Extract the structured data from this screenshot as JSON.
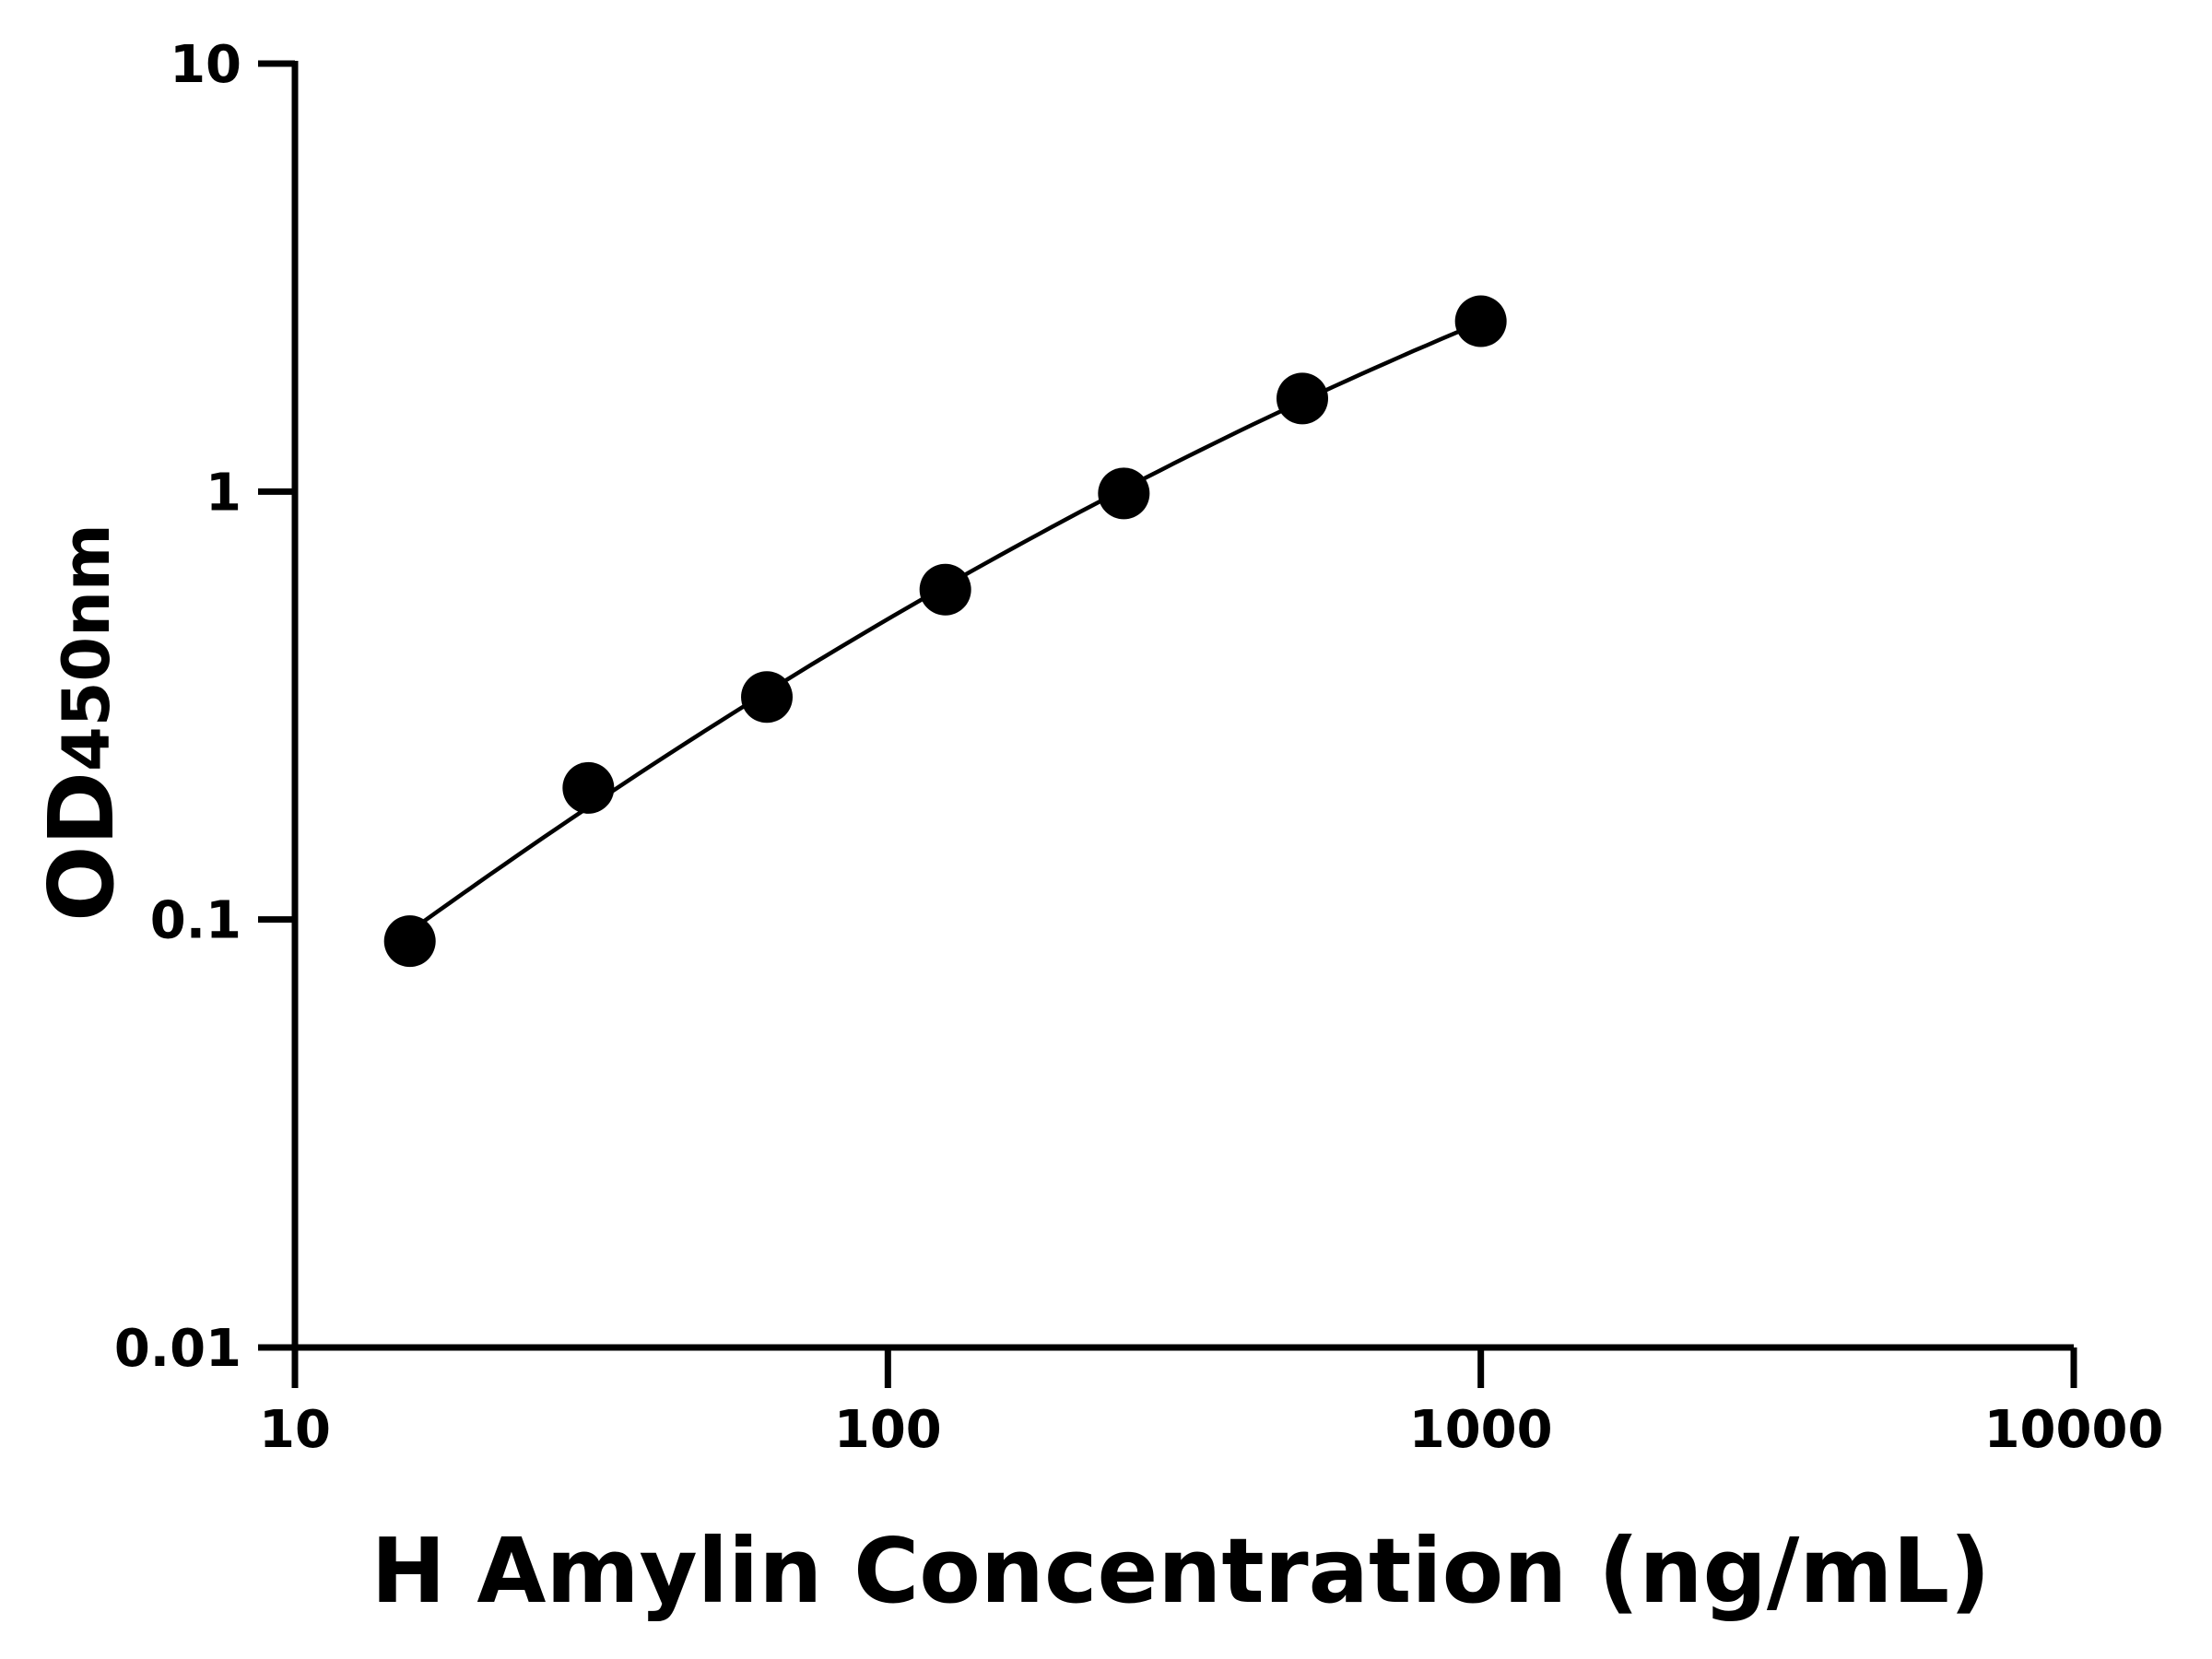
{
  "chart_data": {
    "type": "scatter",
    "title": "",
    "xlabel": "H Amylin Concentration (ng/mL)",
    "ylabel": "OD",
    "ylabel_subscript": "450nm",
    "x_scale": "log",
    "y_scale": "log",
    "xlim": [
      10,
      10000
    ],
    "ylim": [
      0.01,
      10
    ],
    "x_ticks": [
      "10",
      "100",
      "1000",
      "10000"
    ],
    "y_ticks": [
      "0.01",
      "0.1",
      "1",
      "10"
    ],
    "grid": false,
    "legend": "none",
    "fit_line": true,
    "colors": {
      "points": "#000000",
      "line": "#000000",
      "axes": "#000000"
    },
    "points": [
      {
        "x": 15.625,
        "y": 0.089
      },
      {
        "x": 31.25,
        "y": 0.203
      },
      {
        "x": 62.5,
        "y": 0.331
      },
      {
        "x": 125,
        "y": 0.59
      },
      {
        "x": 250,
        "y": 0.99
      },
      {
        "x": 500,
        "y": 1.65
      },
      {
        "x": 1000,
        "y": 2.5
      }
    ]
  }
}
